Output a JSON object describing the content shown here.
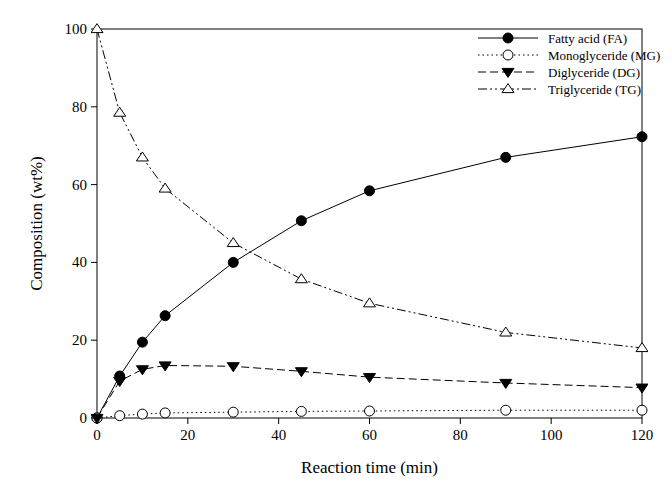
{
  "chart_data": {
    "type": "line",
    "x_label": "Reaction time (min)",
    "y_label": "Composition (wt%)",
    "x": [
      0,
      5,
      10,
      15,
      30,
      45,
      60,
      90,
      120
    ],
    "series": [
      {
        "name": "Fatty acid (FA)",
        "color": "#000000",
        "marker": "filled-circle",
        "line_style": "solid",
        "values": [
          0,
          10.8,
          19.5,
          26.3,
          40,
          50.7,
          58.4,
          67,
          72.3
        ]
      },
      {
        "name": "Monoglyceride (MG)",
        "color": "#000000",
        "marker": "open-circle",
        "line_style": "dotted",
        "values": [
          0,
          0.6,
          1.0,
          1.3,
          1.5,
          1.7,
          1.8,
          2.0,
          2.0
        ]
      },
      {
        "name": "Diglyceride (DG)",
        "color": "#000000",
        "marker": "filled-triangle-down",
        "line_style": "dashed",
        "values": [
          0,
          9.5,
          12.5,
          13.5,
          13.3,
          12,
          10.5,
          9,
          7.8
        ]
      },
      {
        "name": "Triglyceride (TG)",
        "color": "#000000",
        "marker": "open-triangle-up",
        "line_style": "dash-dot-dot",
        "values": [
          100,
          78.5,
          67,
          59,
          45,
          35.7,
          29.5,
          22,
          18
        ]
      }
    ],
    "xlim": [
      0,
      120
    ],
    "xticks": [
      0,
      20,
      40,
      60,
      80,
      100,
      120
    ],
    "ylim": [
      0,
      100
    ],
    "yticks": [
      0,
      20,
      40,
      60,
      80,
      100
    ],
    "grid": false,
    "legend": "upper right"
  }
}
